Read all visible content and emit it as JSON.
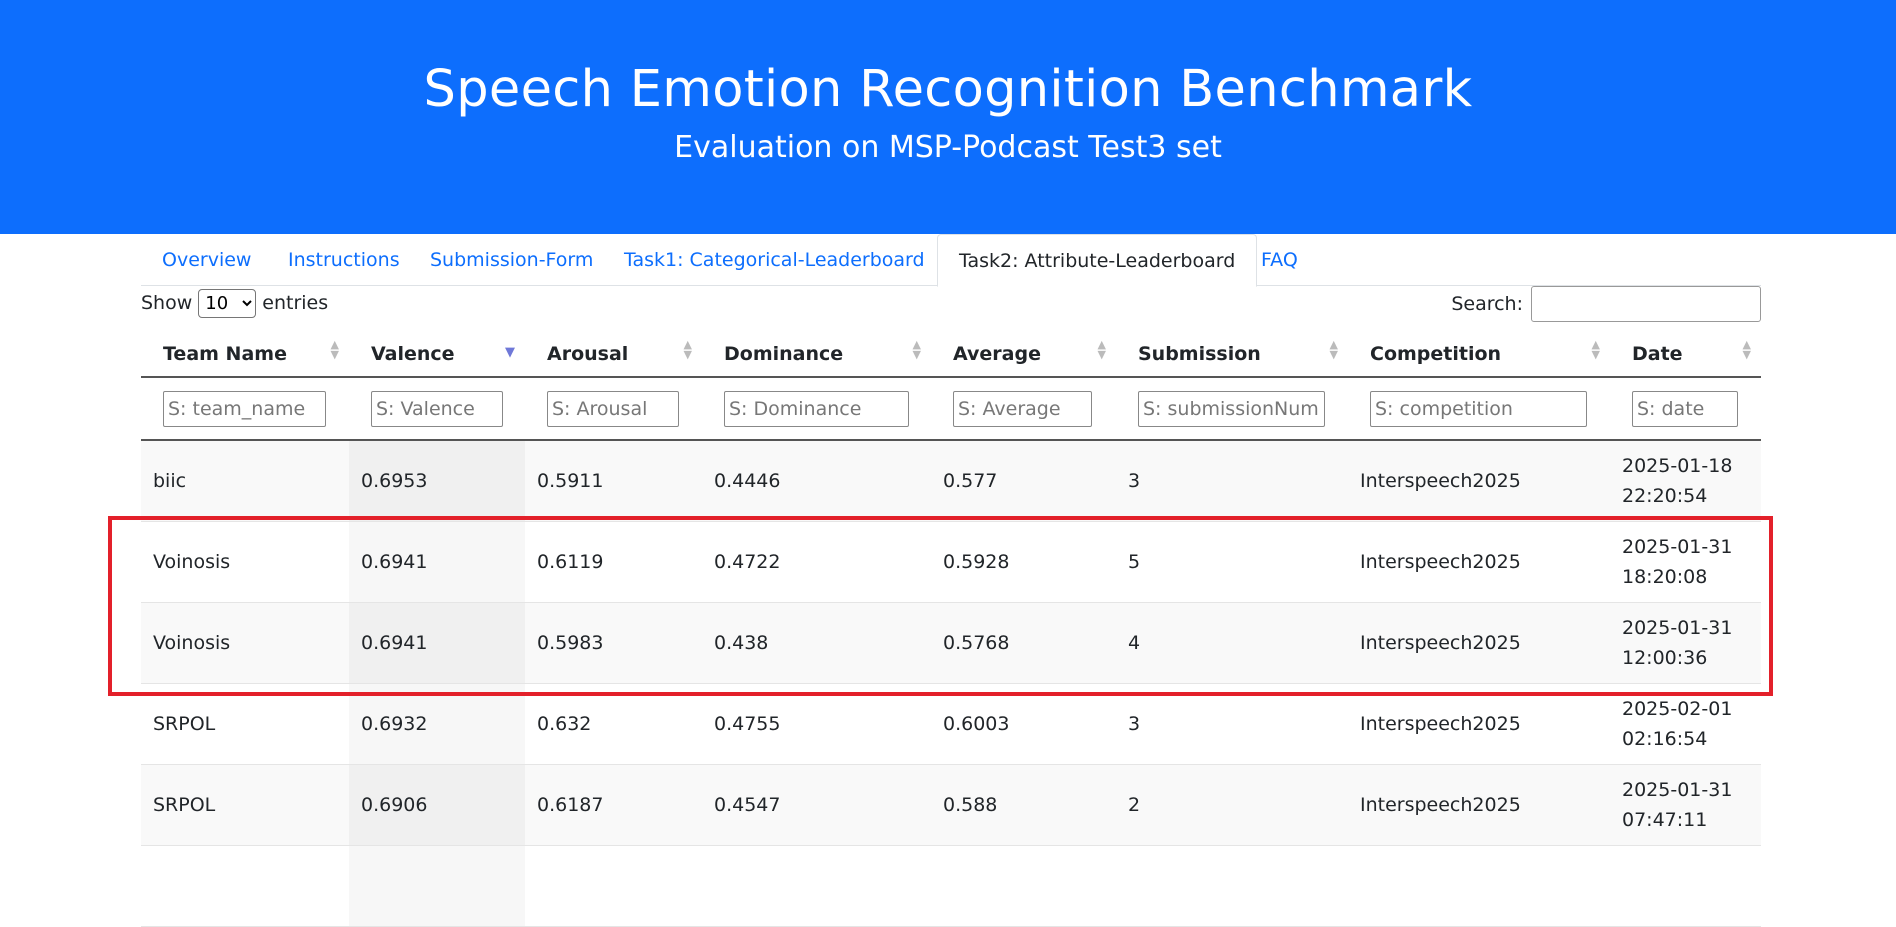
{
  "hero": {
    "title": "Speech Emotion Recognition Benchmark",
    "subtitle": "Evaluation on MSP-Podcast Test3 set"
  },
  "tabs": [
    {
      "label": "Overview",
      "active": false
    },
    {
      "label": "Instructions",
      "active": false
    },
    {
      "label": "Submission-Form",
      "active": false
    },
    {
      "label": "Task1: Categorical-Leaderboard",
      "active": false
    },
    {
      "label": "Task2: Attribute-Leaderboard",
      "active": true
    },
    {
      "label": "FAQ",
      "active": false
    }
  ],
  "length": {
    "show": "Show",
    "selected": "10",
    "entries": "entries"
  },
  "search": {
    "label": "Search:",
    "value": ""
  },
  "table": {
    "headers": [
      "Team Name",
      "Valence",
      "Arousal",
      "Dominance",
      "Average",
      "Submission",
      "Competition",
      "Date"
    ],
    "filters": [
      "S: team_name",
      "S: Valence",
      "S: Arousal",
      "S: Dominance",
      "S: Average",
      "S: submissionNum",
      "S: competition",
      "S: date"
    ],
    "sorted_column": "Valence",
    "sort_direction": "descending",
    "rows": [
      {
        "team": "biic",
        "valence": "0.6953",
        "arousal": "0.5911",
        "dominance": "0.4446",
        "average": "0.577",
        "submission": "3",
        "competition": "Interspeech2025",
        "date": "2025-01-18",
        "time": "22:20:54"
      },
      {
        "team": "Voinosis",
        "valence": "0.6941",
        "arousal": "0.6119",
        "dominance": "0.4722",
        "average": "0.5928",
        "submission": "5",
        "competition": "Interspeech2025",
        "date": "2025-01-31",
        "time": "18:20:08"
      },
      {
        "team": "Voinosis",
        "valence": "0.6941",
        "arousal": "0.5983",
        "dominance": "0.438",
        "average": "0.5768",
        "submission": "4",
        "competition": "Interspeech2025",
        "date": "2025-01-31",
        "time": "12:00:36"
      },
      {
        "team": "SRPOL",
        "valence": "0.6932",
        "arousal": "0.632",
        "dominance": "0.4755",
        "average": "0.6003",
        "submission": "3",
        "competition": "Interspeech2025",
        "date": "2025-02-01",
        "time": "02:16:54"
      },
      {
        "team": "SRPOL",
        "valence": "0.6906",
        "arousal": "0.6187",
        "dominance": "0.4547",
        "average": "0.588",
        "submission": "2",
        "competition": "Interspeech2025",
        "date": "2025-01-31",
        "time": "07:47:11"
      }
    ]
  },
  "colors": {
    "hero_bg": "#0d6efd",
    "link": "#0d6efd",
    "highlight_border": "#e3202a"
  }
}
